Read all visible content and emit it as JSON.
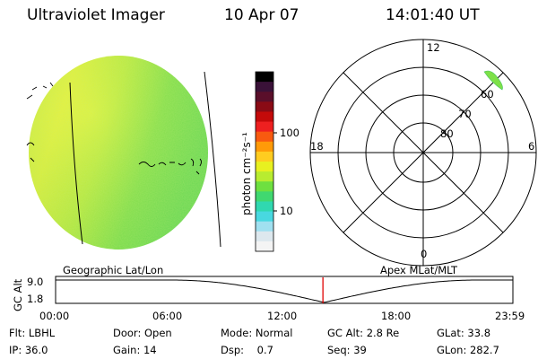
{
  "header": {
    "instrument": "Ultraviolet Imager",
    "date": "10 Apr 07",
    "time": "14:01:40 UT"
  },
  "colorbar": {
    "label": "photon cm⁻²s⁻¹",
    "ticks": [
      "100",
      "10"
    ],
    "colors": [
      "#000000",
      "#3a1238",
      "#5a0f2a",
      "#8a0b15",
      "#c40a0a",
      "#ee2020",
      "#f85a10",
      "#ff9a08",
      "#ffcc20",
      "#e8f020",
      "#b8ec30",
      "#6ee040",
      "#40d870",
      "#30d8b0",
      "#48d8e0",
      "#a0e0f0",
      "#dde8ee",
      "#f4f4f4"
    ]
  },
  "polar_plot": {
    "mlt_labels": {
      "top": "12",
      "left": "18",
      "right": "6",
      "bottom": "0"
    },
    "lat_labels": [
      "60",
      "70",
      "80"
    ]
  },
  "labels": {
    "left_panel": "Geographic Lat/Lon",
    "right_panel": "Apex MLat/MLT"
  },
  "orbit_plot": {
    "ylabel": "GC Alt",
    "yticks": [
      "9.0",
      "1.8"
    ],
    "xticks": [
      "00:00",
      "06:00",
      "12:00",
      "18:00",
      "23:59"
    ],
    "current_time": 14.03,
    "perigee_time": 14.1
  },
  "status": [
    {
      "label": "Flt:",
      "value": "LBHL"
    },
    {
      "label": "Door:",
      "value": "Open"
    },
    {
      "label": "Mode:",
      "value": "Normal"
    },
    {
      "label": "GC Alt:",
      "value": "2.8 Re"
    },
    {
      "label": "GLat:",
      "value": "33.8"
    },
    {
      "label": "IP:",
      "value": "36.0"
    },
    {
      "label": "Gain:",
      "value": "14"
    },
    {
      "label": "Dsp:",
      "value": "0.7"
    },
    {
      "label": "Seq:",
      "value": "39"
    },
    {
      "label": "GLon:",
      "value": "282.7"
    }
  ]
}
